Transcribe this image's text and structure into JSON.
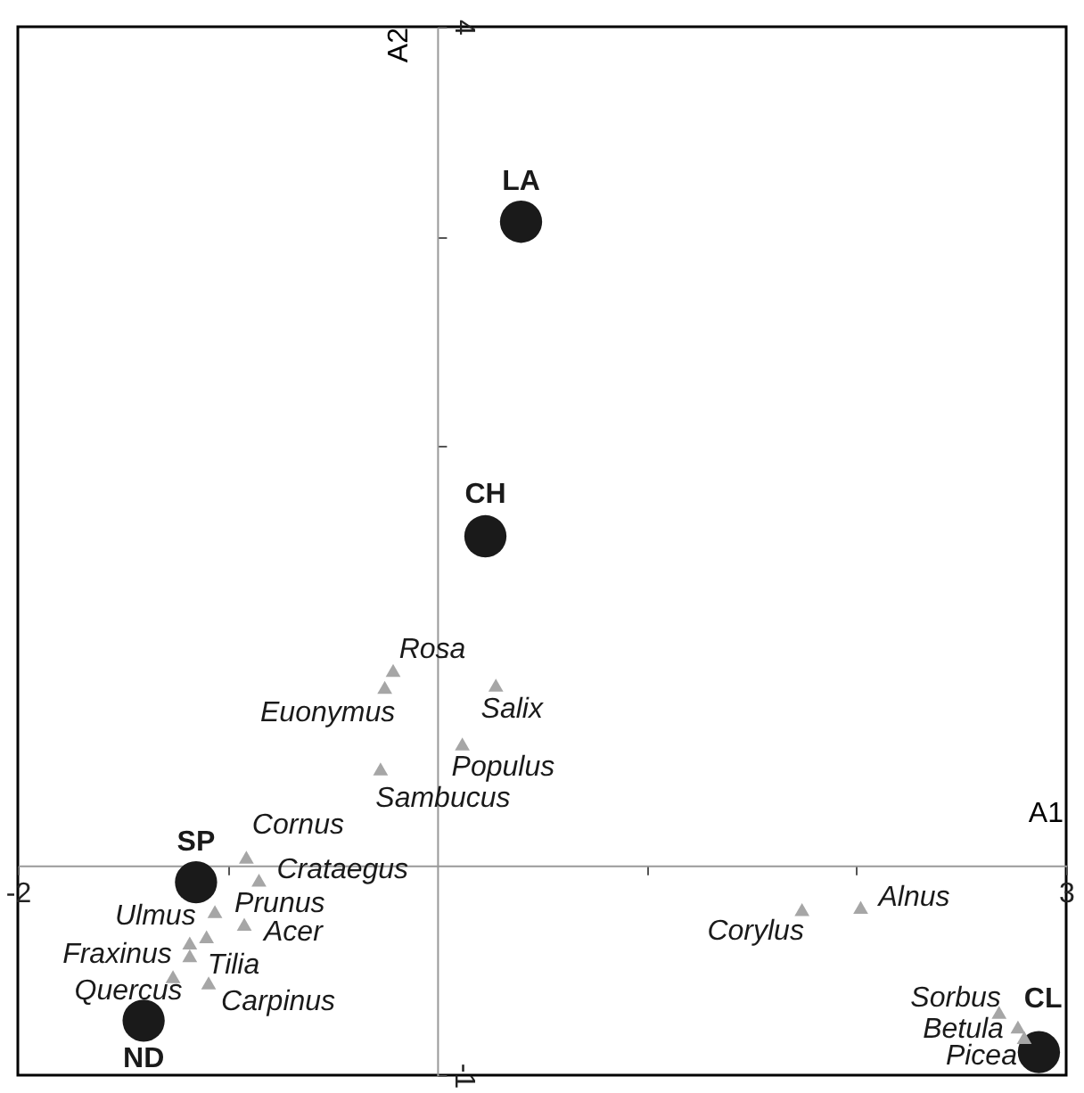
{
  "chart_data": {
    "type": "scatter",
    "xlabel": "A1",
    "ylabel": "A2",
    "xlim": [
      -2,
      3
    ],
    "ylim": [
      -1,
      4
    ],
    "xticks": [
      -2,
      {
        "value": -1,
        "label": null
      },
      {
        "value": 1,
        "label": null
      },
      {
        "value": 2,
        "label": null
      },
      3
    ],
    "yticks": [
      -1,
      {
        "value": 1,
        "label": null
      },
      {
        "value": 2,
        "label": null
      },
      {
        "value": 3,
        "label": null
      },
      4
    ],
    "grid": false,
    "series": [
      {
        "color": "#1a1a1a",
        "marker": "circle",
        "x": [
          0.4,
          0.23,
          -1.15,
          -1.4,
          2.87
        ],
        "values": [
          3.07,
          1.57,
          -0.08,
          -0.74,
          -0.89
        ]
      },
      {
        "color": "#a6a6a6",
        "marker": "triangle",
        "x": [
          -0.21,
          -0.25,
          0.28,
          0.12,
          -0.27,
          -0.91,
          -0.85,
          -1.06,
          -0.92,
          -1.1,
          -1.18,
          -1.18,
          -1.26,
          -1.09,
          1.74,
          2.02,
          2.68,
          2.77,
          2.8
        ],
        "values": [
          0.93,
          0.85,
          0.86,
          0.58,
          0.46,
          0.04,
          -0.07,
          -0.22,
          -0.28,
          -0.34,
          -0.37,
          -0.43,
          -0.53,
          -0.56,
          -0.21,
          -0.2,
          -0.7,
          -0.77,
          -0.82
        ]
      }
    ],
    "annotations": [
      {
        "text": "LA",
        "x": 0.4,
        "y": 3.07
      },
      {
        "text": "CH",
        "x": 0.23,
        "y": 1.57
      },
      {
        "text": "SP",
        "x": -1.15,
        "y": -0.08
      },
      {
        "text": "ND",
        "x": -1.4,
        "y": -0.74
      },
      {
        "text": "CL",
        "x": 2.87,
        "y": -0.89
      },
      {
        "text": "Rosa",
        "x": -0.21,
        "y": 0.93
      },
      {
        "text": "Euonymus",
        "x": -0.25,
        "y": 0.85
      },
      {
        "text": "Salix",
        "x": 0.28,
        "y": 0.86
      },
      {
        "text": "Populus",
        "x": 0.12,
        "y": 0.58
      },
      {
        "text": "Sambucus",
        "x": -0.27,
        "y": 0.46
      },
      {
        "text": "Cornus",
        "x": -0.91,
        "y": 0.04
      },
      {
        "text": "Crataegus",
        "x": -0.85,
        "y": -0.07
      },
      {
        "text": "Prunus",
        "x": -1.06,
        "y": -0.22
      },
      {
        "text": "Acer",
        "x": -0.92,
        "y": -0.28
      },
      {
        "text": "Ulmus",
        "x": -1.1,
        "y": -0.34
      },
      {
        "text": "Fraxinus",
        "x": -1.18,
        "y": -0.37
      },
      {
        "text": "Tilia",
        "x": -1.18,
        "y": -0.43
      },
      {
        "text": "Quercus",
        "x": -1.26,
        "y": -0.53
      },
      {
        "text": "Carpinus",
        "x": -1.09,
        "y": -0.56
      },
      {
        "text": "Corylus",
        "x": 1.74,
        "y": -0.21
      },
      {
        "text": "Alnus",
        "x": 2.02,
        "y": -0.2
      },
      {
        "text": "Sorbus",
        "x": 2.68,
        "y": -0.7
      },
      {
        "text": "Betula",
        "x": 2.77,
        "y": -0.77
      },
      {
        "text": "Picea",
        "x": 2.8,
        "y": -0.82
      }
    ]
  }
}
